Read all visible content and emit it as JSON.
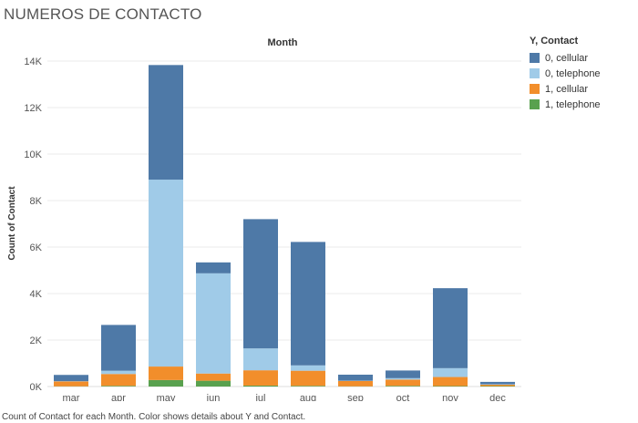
{
  "title": "NUMEROS DE CONTACTO",
  "caption": "Count of Contact for each Month.  Color shows details about Y and Contact.",
  "legend": {
    "title": "Y, Contact",
    "items": [
      {
        "label": "0, cellular",
        "color": "#4e79a7"
      },
      {
        "label": "0, telephone",
        "color": "#a0cbe8"
      },
      {
        "label": "1, cellular",
        "color": "#f28e2b"
      },
      {
        "label": "1, telephone",
        "color": "#59a14f"
      }
    ]
  },
  "chart_data": {
    "type": "bar",
    "stacked": true,
    "title": "Month",
    "xlabel": "",
    "ylabel": "Count of Contact",
    "ylim": [
      0,
      14000
    ],
    "yticks": [
      0,
      2000,
      4000,
      6000,
      8000,
      10000,
      12000,
      14000
    ],
    "ytick_labels": [
      "0K",
      "2K",
      "4K",
      "6K",
      "8K",
      "10K",
      "12K",
      "14K"
    ],
    "grid": true,
    "legend_position": "right",
    "categories": [
      "mar",
      "apr",
      "may",
      "jun",
      "jul",
      "aug",
      "sep",
      "oct",
      "nov",
      "dec"
    ],
    "series": [
      {
        "name": "1, telephone",
        "color": "#59a14f",
        "values": [
          10,
          30,
          280,
          250,
          40,
          30,
          10,
          30,
          20,
          20
        ]
      },
      {
        "name": "1, cellular",
        "color": "#f28e2b",
        "values": [
          210,
          510,
          580,
          310,
          660,
          650,
          230,
          270,
          390,
          60
        ]
      },
      {
        "name": "0, telephone",
        "color": "#a0cbe8",
        "values": [
          10,
          140,
          8040,
          4310,
          940,
          230,
          10,
          60,
          380,
          20
        ]
      },
      {
        "name": "0, cellular",
        "color": "#4e79a7",
        "values": [
          270,
          1970,
          4930,
          470,
          5560,
          5310,
          260,
          330,
          3440,
          100
        ]
      }
    ]
  }
}
